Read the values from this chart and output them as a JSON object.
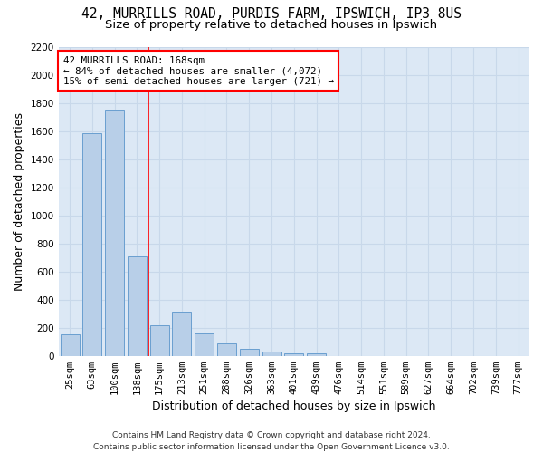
{
  "title_line1": "42, MURRILLS ROAD, PURDIS FARM, IPSWICH, IP3 8US",
  "title_line2": "Size of property relative to detached houses in Ipswich",
  "xlabel": "Distribution of detached houses by size in Ipswich",
  "ylabel": "Number of detached properties",
  "categories": [
    "25sqm",
    "63sqm",
    "100sqm",
    "138sqm",
    "175sqm",
    "213sqm",
    "251sqm",
    "288sqm",
    "326sqm",
    "363sqm",
    "401sqm",
    "439sqm",
    "476sqm",
    "514sqm",
    "551sqm",
    "589sqm",
    "627sqm",
    "664sqm",
    "702sqm",
    "739sqm",
    "777sqm"
  ],
  "values": [
    155,
    1585,
    1755,
    710,
    215,
    315,
    160,
    88,
    50,
    30,
    20,
    15,
    0,
    0,
    0,
    0,
    0,
    0,
    0,
    0,
    0
  ],
  "bar_color": "#b8cfe8",
  "bar_edge_color": "#6a9fd0",
  "annotation_text": "42 MURRILLS ROAD: 168sqm\n← 84% of detached houses are smaller (4,072)\n15% of semi-detached houses are larger (721) →",
  "annotation_box_color": "white",
  "annotation_box_edge_color": "red",
  "vline_color": "red",
  "ylim": [
    0,
    2200
  ],
  "yticks": [
    0,
    200,
    400,
    600,
    800,
    1000,
    1200,
    1400,
    1600,
    1800,
    2000,
    2200
  ],
  "grid_color": "#c8d8ea",
  "background_color": "#dce8f5",
  "footer_line1": "Contains HM Land Registry data © Crown copyright and database right 2024.",
  "footer_line2": "Contains public sector information licensed under the Open Government Licence v3.0.",
  "title_fontsize": 10.5,
  "subtitle_fontsize": 9.5,
  "axis_label_fontsize": 9,
  "tick_fontsize": 7.5,
  "annotation_fontsize": 7.8,
  "footer_fontsize": 6.5
}
